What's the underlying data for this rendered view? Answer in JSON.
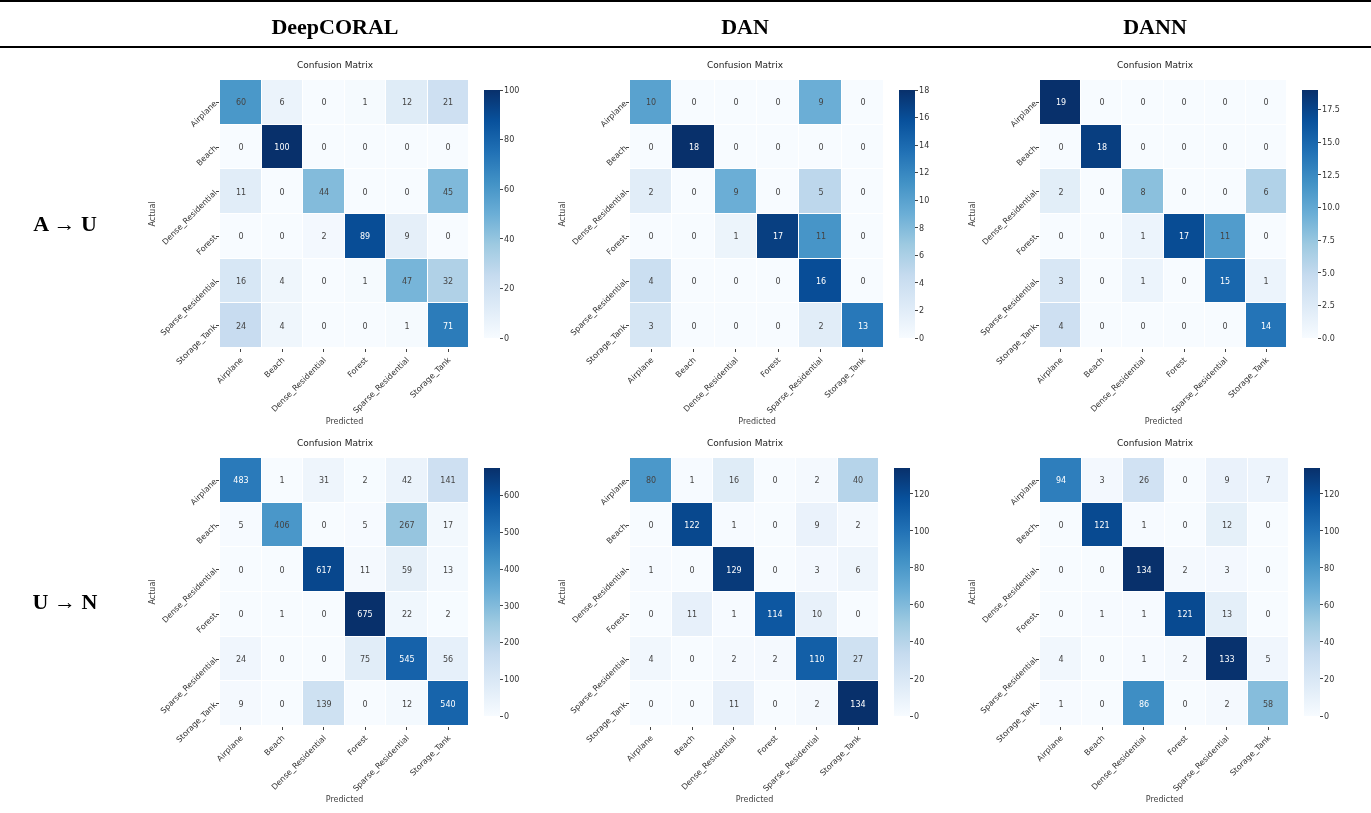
{
  "chart_data": [
    {
      "type": "heatmap",
      "title": "Confusion Matrix",
      "xlabel": "Predicted",
      "ylabel": "Actual",
      "annotations": [
        "DeepCORAL",
        "A → U"
      ],
      "categories": [
        "Airplane",
        "Beach",
        "Dense_Residential",
        "Forest",
        "Sparse_Residential",
        "Storage_Tank"
      ],
      "y_categories": [
        "Airplane",
        "Beach",
        "Dense_Residential",
        "Forest",
        "Sparse_Residential",
        "Storage_Tank"
      ],
      "cells": [
        [
          60,
          6,
          0,
          1,
          12,
          21
        ],
        [
          0,
          100,
          0,
          0,
          0,
          0
        ],
        [
          11,
          0,
          44,
          0,
          0,
          45
        ],
        [
          0,
          0,
          2,
          89,
          9,
          0
        ],
        [
          16,
          4,
          0,
          1,
          47,
          32
        ],
        [
          24,
          4,
          0,
          0,
          1,
          71
        ]
      ],
      "clim": [
        0,
        100
      ],
      "cticks": [
        0,
        20,
        40,
        60,
        80,
        100
      ],
      "data_labels": true
    },
    {
      "type": "heatmap",
      "title": "Confusion Matrix",
      "xlabel": "Predicted",
      "ylabel": "Actual",
      "annotations": [
        "DAN"
      ],
      "categories": [
        "Airplane",
        "Beach",
        "Dense_Residential",
        "Forest",
        "Sparse_Residential",
        "Storage_Tank"
      ],
      "y_categories": [
        "Airplane",
        "Beach",
        "Dense_Residential",
        "Forest",
        "Sparse_Residential",
        "Storage_Tank"
      ],
      "cells": [
        [
          10,
          0,
          0,
          0,
          9,
          0
        ],
        [
          0,
          18,
          0,
          0,
          0,
          0
        ],
        [
          2,
          0,
          9,
          0,
          5,
          0
        ],
        [
          0,
          0,
          1,
          17,
          11,
          0
        ],
        [
          4,
          0,
          0,
          0,
          16,
          0
        ],
        [
          3,
          0,
          0,
          0,
          2,
          13
        ]
      ],
      "clim": [
        0,
        18
      ],
      "cticks": [
        0,
        2,
        4,
        6,
        8,
        10,
        12,
        14,
        16,
        18
      ],
      "data_labels": true
    },
    {
      "type": "heatmap",
      "title": "Confusion Matrix",
      "xlabel": "Predicted",
      "ylabel": "Actual",
      "annotations": [
        "DANN"
      ],
      "categories": [
        "Airplane",
        "Beach",
        "Dense_Residential",
        "Forest",
        "Sparse_Residential",
        "Storage_Tank"
      ],
      "y_categories": [
        "Airplane",
        "Beach",
        "Dense_Residential",
        "Forest",
        "Sparse_Residential",
        "Storage_Tank"
      ],
      "cells": [
        [
          19,
          0,
          0,
          0,
          0,
          0
        ],
        [
          0,
          18,
          0,
          0,
          0,
          0
        ],
        [
          2,
          0,
          8,
          0,
          0,
          6
        ],
        [
          0,
          0,
          1,
          17,
          11,
          0
        ],
        [
          3,
          0,
          1,
          0,
          15,
          1
        ],
        [
          4,
          0,
          0,
          0,
          0,
          14
        ]
      ],
      "clim": [
        0,
        19
      ],
      "cticks": [
        {
          "value": 0,
          "label": "0.0"
        },
        2.5,
        {
          "value": 5,
          "label": "5.0"
        },
        7.5,
        {
          "value": 10,
          "label": "10.0"
        },
        12.5,
        {
          "value": 15,
          "label": "15.0"
        },
        17.5
      ],
      "data_labels": true
    },
    {
      "type": "heatmap",
      "title": "Confusion Matrix",
      "xlabel": "Predicted",
      "ylabel": "Actual",
      "annotations": [
        "U → N"
      ],
      "categories": [
        "Airplane",
        "Beach",
        "Dense_Residential",
        "Forest",
        "Sparse_Residential",
        "Storage_Tank"
      ],
      "y_categories": [
        "Airplane",
        "Beach",
        "Dense_Residential",
        "Forest",
        "Sparse_Residential",
        "Storage_Tank"
      ],
      "cells": [
        [
          483,
          1,
          31,
          2,
          42,
          141
        ],
        [
          5,
          406,
          0,
          5,
          267,
          17
        ],
        [
          0,
          0,
          617,
          11,
          59,
          13
        ],
        [
          0,
          1,
          0,
          675,
          22,
          2
        ],
        [
          24,
          0,
          0,
          75,
          545,
          56
        ],
        [
          9,
          0,
          139,
          0,
          12,
          540
        ]
      ],
      "clim": [
        0,
        675
      ],
      "cticks": [
        0,
        100,
        200,
        300,
        400,
        500,
        600
      ],
      "data_labels": true
    },
    {
      "type": "heatmap",
      "title": "Confusion Matrix",
      "xlabel": "Predicted",
      "ylabel": "Actual",
      "categories": [
        "Airplane",
        "Beach",
        "Dense_Residential",
        "Forest",
        "Sparse_Residential",
        "Storage_Tank"
      ],
      "y_categories": [
        "Airplane",
        "Beach",
        "Dense_Residential",
        "Forest",
        "Sparse_Residential",
        "Storage_Tank"
      ],
      "cells": [
        [
          80,
          1,
          16,
          0,
          2,
          40
        ],
        [
          0,
          122,
          1,
          0,
          9,
          2
        ],
        [
          1,
          0,
          129,
          0,
          3,
          6
        ],
        [
          0,
          11,
          1,
          114,
          10,
          0
        ],
        [
          4,
          0,
          2,
          2,
          110,
          27
        ],
        [
          0,
          0,
          11,
          0,
          2,
          134
        ]
      ],
      "clim": [
        0,
        134
      ],
      "cticks": [
        0,
        20,
        40,
        60,
        80,
        100,
        120
      ],
      "data_labels": true
    },
    {
      "type": "heatmap",
      "title": "Confusion Matrix",
      "xlabel": "Predicted",
      "ylabel": "Actual",
      "categories": [
        "Airplane",
        "Beach",
        "Dense_Residential",
        "Forest",
        "Sparse_Residential",
        "Storage_Tank"
      ],
      "y_categories": [
        "Airplane",
        "Beach",
        "Dense_Residential",
        "Forest",
        "Sparse_Residential",
        "Storage_Tank"
      ],
      "cells": [
        [
          94,
          3,
          26,
          0,
          9,
          7
        ],
        [
          0,
          121,
          1,
          0,
          12,
          0
        ],
        [
          0,
          0,
          134,
          2,
          3,
          0
        ],
        [
          0,
          1,
          1,
          121,
          13,
          0
        ],
        [
          4,
          0,
          1,
          2,
          133,
          5
        ],
        [
          1,
          0,
          86,
          0,
          2,
          58
        ]
      ],
      "clim": [
        0,
        134
      ],
      "cticks": [
        0,
        20,
        40,
        60,
        80,
        100,
        120
      ],
      "data_labels": true
    }
  ]
}
